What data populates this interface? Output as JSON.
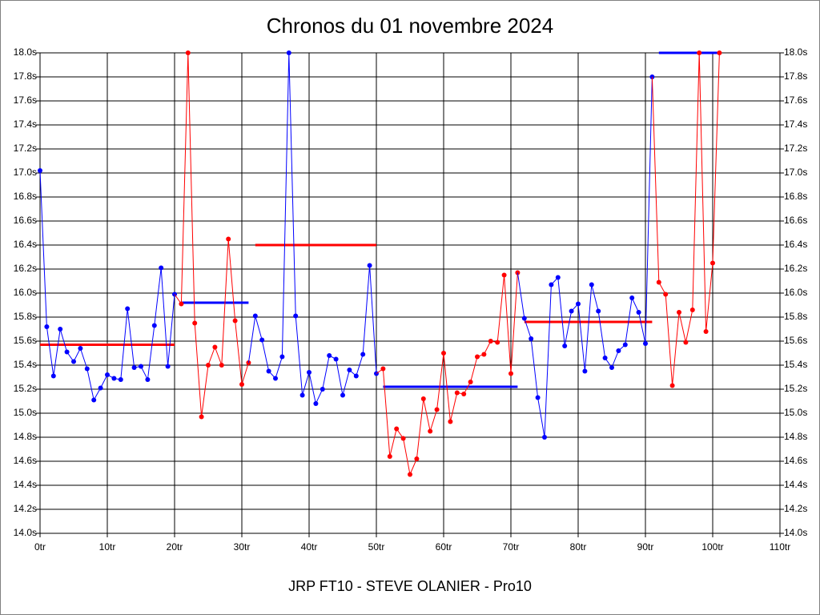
{
  "chart_data": {
    "type": "line",
    "title": "Chronos du 01 novembre 2024",
    "x_label": "JRP FT10 - STEVE OLANIER - Pro10",
    "xlim": [
      0,
      110
    ],
    "xticks": [
      {
        "value": 0,
        "label": "0tr"
      },
      {
        "value": 10,
        "label": "10tr"
      },
      {
        "value": 20,
        "label": "20tr"
      },
      {
        "value": 30,
        "label": "30tr"
      },
      {
        "value": 40,
        "label": "40tr"
      },
      {
        "value": 50,
        "label": "50tr"
      },
      {
        "value": 60,
        "label": "60tr"
      },
      {
        "value": 70,
        "label": "70tr"
      },
      {
        "value": 80,
        "label": "80tr"
      },
      {
        "value": 90,
        "label": "90tr"
      },
      {
        "value": 100,
        "label": "100tr"
      },
      {
        "value": 110,
        "label": "110tr"
      }
    ],
    "ylim": [
      14,
      18
    ],
    "yticks": [
      {
        "value": 14,
        "label": "14.0s"
      },
      {
        "value": 14.2,
        "label": "14.2s"
      },
      {
        "value": 14.4,
        "label": "14.4s"
      },
      {
        "value": 14.6,
        "label": "14.6s"
      },
      {
        "value": 14.8,
        "label": "14.8s"
      },
      {
        "value": 15,
        "label": "15.0s"
      },
      {
        "value": 15.2,
        "label": "15.2s"
      },
      {
        "value": 15.4,
        "label": "15.4s"
      },
      {
        "value": 15.6,
        "label": "15.6s"
      },
      {
        "value": 15.8,
        "label": "15.8s"
      },
      {
        "value": 16,
        "label": "16.0s"
      },
      {
        "value": 16.2,
        "label": "16.2s"
      },
      {
        "value": 16.4,
        "label": "16.4s"
      },
      {
        "value": 16.6,
        "label": "16.6s"
      },
      {
        "value": 16.8,
        "label": "16.8s"
      },
      {
        "value": 17,
        "label": "17.0s"
      },
      {
        "value": 17.2,
        "label": "17.2s"
      },
      {
        "value": 17.4,
        "label": "17.4s"
      },
      {
        "value": 17.6,
        "label": "17.6s"
      },
      {
        "value": 17.8,
        "label": "17.8s"
      },
      {
        "value": 18,
        "label": "18.0s"
      }
    ],
    "grid": true,
    "series": [
      {
        "color": "#0000ff",
        "x": [
          0,
          1,
          2,
          3,
          4,
          5,
          6,
          7,
          8,
          9,
          10,
          11,
          12,
          13,
          14,
          15,
          16,
          17,
          18,
          19,
          20
        ],
        "values": [
          17.02,
          15.72,
          15.31,
          15.7,
          15.51,
          15.43,
          15.54,
          15.37,
          15.11,
          15.21,
          15.32,
          15.29,
          15.28,
          15.87,
          15.38,
          15.39,
          15.28,
          15.73,
          16.21,
          15.39,
          15.99
        ]
      },
      {
        "color": "#ff0000",
        "x": [
          21,
          22,
          23,
          24,
          25,
          26,
          27,
          28,
          29,
          30,
          31
        ],
        "values": [
          15.91,
          18.0,
          15.75,
          14.97,
          15.4,
          15.55,
          15.4,
          16.45,
          15.77,
          15.24,
          15.42
        ]
      },
      {
        "color": "#0000ff",
        "x": [
          32,
          33,
          34,
          35,
          36,
          37,
          38,
          39,
          40,
          41,
          42,
          43,
          44,
          45,
          46,
          47,
          48,
          49,
          50
        ],
        "values": [
          15.81,
          15.61,
          15.35,
          15.29,
          15.47,
          18.0,
          15.81,
          15.15,
          15.34,
          15.08,
          15.2,
          15.48,
          15.45,
          15.15,
          15.36,
          15.31,
          15.49,
          16.23,
          15.33
        ]
      },
      {
        "color": "#ff0000",
        "x": [
          51,
          52,
          53,
          54,
          55,
          56,
          57,
          58,
          59,
          60,
          61,
          62,
          63,
          64,
          65,
          66,
          67,
          68,
          69,
          70,
          71
        ],
        "values": [
          15.37,
          14.64,
          14.87,
          14.79,
          14.49,
          14.62,
          15.12,
          14.85,
          15.03,
          15.5,
          14.93,
          15.17,
          15.16,
          15.26,
          15.47,
          15.49,
          15.6,
          15.59,
          16.15,
          15.33,
          16.17
        ]
      },
      {
        "color": "#0000ff",
        "x": [
          72,
          73,
          74,
          75,
          76,
          77,
          78,
          79,
          80,
          81,
          82,
          83,
          84,
          85,
          86,
          87,
          88,
          89,
          90,
          91
        ],
        "values": [
          15.79,
          15.62,
          15.13,
          14.8,
          16.07,
          16.13,
          15.56,
          15.85,
          15.91,
          15.35,
          16.07,
          15.85,
          15.46,
          15.38,
          15.52,
          15.57,
          15.96,
          15.84,
          15.58,
          17.8
        ]
      },
      {
        "color": "#ff0000",
        "x": [
          92,
          93,
          94,
          95,
          96,
          97,
          98,
          99,
          100,
          101
        ],
        "values": [
          16.09,
          15.99,
          15.23,
          15.84,
          15.59,
          15.86,
          18.0,
          15.68,
          16.25,
          18.0
        ]
      }
    ],
    "reference_lines": [
      {
        "color": "#ff0000",
        "x": [
          0,
          20
        ],
        "value": 15.57
      },
      {
        "color": "#0000ff",
        "x": [
          21,
          31
        ],
        "value": 15.92
      },
      {
        "color": "#ff0000",
        "x": [
          32,
          50
        ],
        "value": 16.4
      },
      {
        "color": "#0000ff",
        "x": [
          51,
          71
        ],
        "value": 15.22
      },
      {
        "color": "#ff0000",
        "x": [
          72,
          91
        ],
        "value": 15.76
      },
      {
        "color": "#0000ff",
        "x": [
          92,
          101
        ],
        "value": 18.0
      }
    ]
  }
}
